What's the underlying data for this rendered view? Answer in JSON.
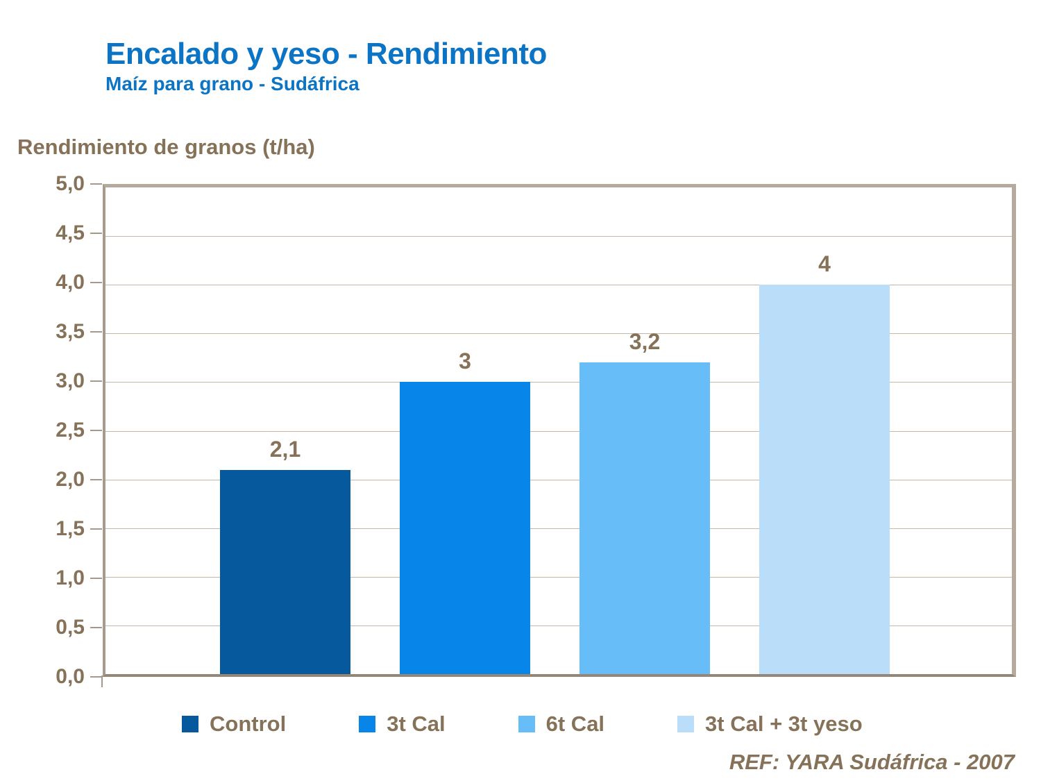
{
  "header": {
    "title": "Encalado y yeso - Rendimiento",
    "subtitle": "Maíz para grano - Sudáfrica"
  },
  "footer": {
    "ref": "REF: YARA Sudáfrica - 2007"
  },
  "colors": {
    "title_blue": "#0c74c5",
    "text_brown": "#857258",
    "frame_tan": "#b5aa9d",
    "gridline_tan": "#c3b7a9",
    "bar_control": "#07599d",
    "bar_3t_cal": "#0885e8",
    "bar_6t_cal": "#67bdf8",
    "bar_3t_cal_3t_yeso": "#badef9"
  },
  "chart_data": {
    "type": "bar",
    "title": "Encalado y yeso - Rendimiento",
    "subtitle": "Maíz para grano - Sudáfrica",
    "ylabel": "Rendimiento de granos (t/ha)",
    "xlabel": "",
    "categories": [
      "Control",
      "3t Cal",
      "6t Cal",
      "3t Cal + 3t yeso"
    ],
    "values": [
      2.1,
      3,
      3.2,
      4
    ],
    "value_labels": [
      "2,1",
      "3",
      "3,2",
      "4"
    ],
    "bar_colors": [
      "#07599d",
      "#0885e8",
      "#67bdf8",
      "#badef9"
    ],
    "ylim": [
      0,
      5
    ],
    "ytick_step": 0.5,
    "ytick_labels": [
      "0,0",
      "0,5",
      "1,0",
      "1,5",
      "2,0",
      "2,5",
      "3,0",
      "3,5",
      "4,0",
      "4,5",
      "5,0"
    ],
    "grid": true,
    "legend_position": "bottom",
    "annotation": "REF: YARA Sudáfrica - 2007"
  }
}
